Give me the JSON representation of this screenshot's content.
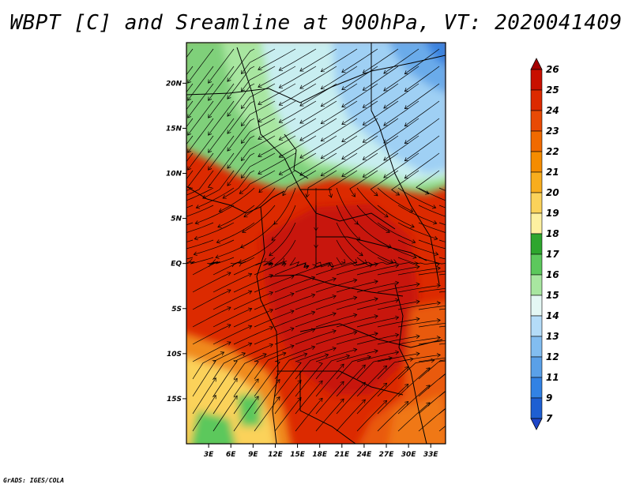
{
  "title": "WBPT [C] and Sreamline at 900hPa, VT: 2020041409",
  "credit": "GrADS: IGES/COLA",
  "map": {
    "lon_range": [
      0,
      35
    ],
    "lat_range": [
      -20,
      24.5
    ],
    "lat_ticks": [
      {
        "value": 20,
        "label": "20N"
      },
      {
        "value": 15,
        "label": "15N"
      },
      {
        "value": 10,
        "label": "10N"
      },
      {
        "value": 5,
        "label": "5N"
      },
      {
        "value": 0,
        "label": "EQ"
      },
      {
        "value": -5,
        "label": "5S"
      },
      {
        "value": -10,
        "label": "10S"
      },
      {
        "value": -15,
        "label": "15S"
      }
    ],
    "lon_ticks": [
      {
        "value": 3,
        "label": "3E"
      },
      {
        "value": 6,
        "label": "6E"
      },
      {
        "value": 9,
        "label": "9E"
      },
      {
        "value": 12,
        "label": "12E"
      },
      {
        "value": 15,
        "label": "15E"
      },
      {
        "value": 18,
        "label": "18E"
      },
      {
        "value": 21,
        "label": "21E"
      },
      {
        "value": 24,
        "label": "24E"
      },
      {
        "value": 27,
        "label": "27E"
      },
      {
        "value": 30,
        "label": "30E"
      },
      {
        "value": 33,
        "label": "33E"
      }
    ]
  },
  "colorbar": {
    "labels": [
      "26",
      "25",
      "24",
      "23",
      "22",
      "21",
      "20",
      "19",
      "18",
      "17",
      "16",
      "15",
      "14",
      "13",
      "12",
      "11",
      "9",
      "7"
    ],
    "colors": [
      "#a50000",
      "#c80f00",
      "#dc2a00",
      "#e84a05",
      "#f06a00",
      "#f58c00",
      "#f8ad1e",
      "#fbd25a",
      "#fdf0a0",
      "#2ea62e",
      "#5cc85c",
      "#a8e6a0",
      "#e4f7f4",
      "#b4dcf8",
      "#82bdf0",
      "#5aa0e8",
      "#3282e4",
      "#1e5fd2",
      "#1e46c8"
    ]
  },
  "colors": {
    "warm": "#dc2a00",
    "hot": "#c80f00",
    "orange": "#f06a00",
    "yellow": "#fbd25a",
    "green": "#5cc85c",
    "light_green": "#a8e6a0",
    "pale": "#e4f7f4",
    "light_blue": "#b4dcf8",
    "blue": "#82bdf0"
  }
}
